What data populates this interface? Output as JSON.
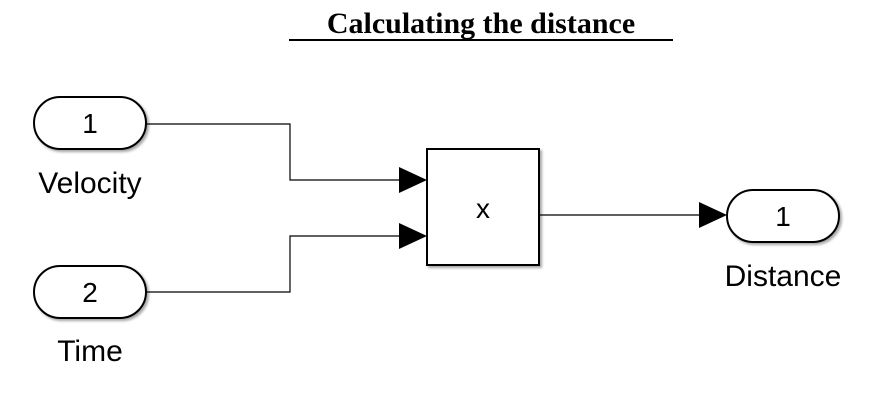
{
  "title": "Calculating the distance",
  "inports": [
    {
      "number": "1",
      "label": "Velocity"
    },
    {
      "number": "2",
      "label": "Time"
    }
  ],
  "product_block": {
    "symbol": "x"
  },
  "outports": [
    {
      "number": "1",
      "label": "Distance"
    }
  ]
}
